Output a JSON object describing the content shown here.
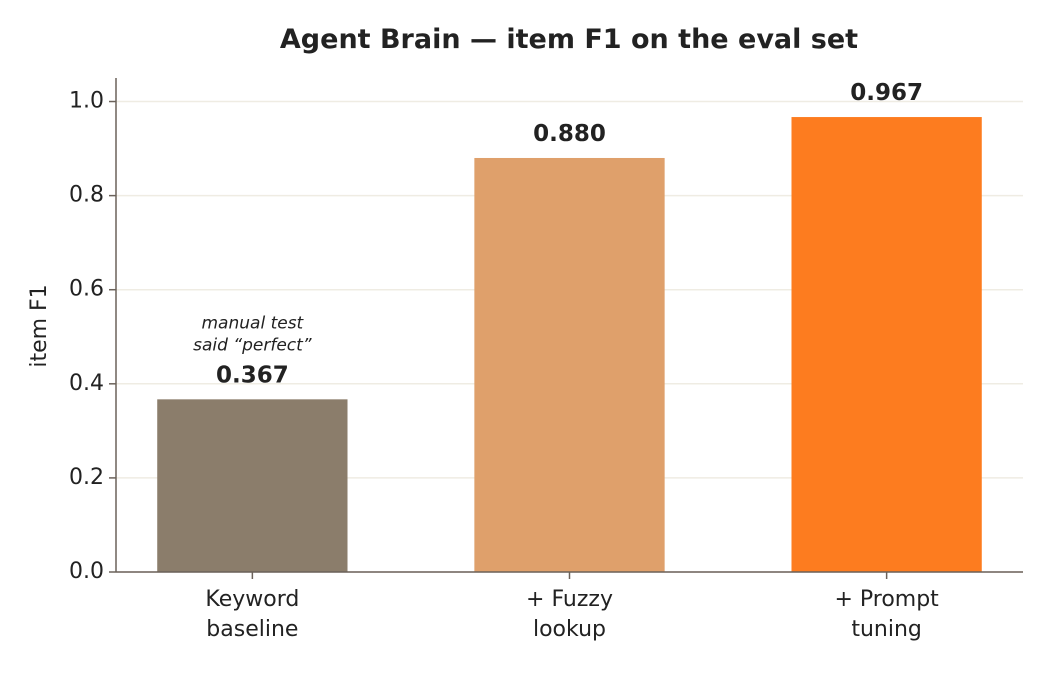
{
  "chart_data": {
    "type": "bar",
    "title": "Agent Brain — item F1 on the eval set",
    "y_label": "item F1",
    "categories": [
      "Keyword\nbaseline",
      "+ Fuzzy\nlookup",
      "+ Prompt\ntuning"
    ],
    "values": [
      0.367,
      0.88,
      0.967
    ],
    "value_labels": [
      "0.367",
      "0.880",
      "0.967"
    ],
    "colors": [
      "#8b7d6b",
      "#dfa06b",
      "#fd7c1f"
    ],
    "annotations": [
      {
        "category": 0,
        "text": "manual test\nsaid “perfect”"
      }
    ],
    "ylim": [
      0,
      1.05
    ],
    "yticks": [
      {
        "value": 0,
        "label": "0.0"
      },
      {
        "value": 0.2,
        "label": "0.2"
      },
      {
        "value": 0.4,
        "label": "0.4"
      },
      {
        "value": 0.6,
        "label": "0.6"
      },
      {
        "value": 0.8,
        "label": "0.8"
      },
      {
        "value": 1,
        "label": "1.0"
      }
    ],
    "grid": true
  }
}
